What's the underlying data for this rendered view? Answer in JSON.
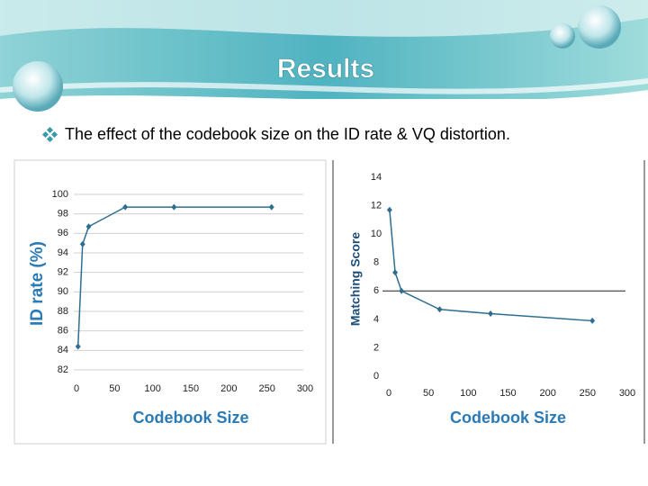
{
  "title": "Results",
  "bullet": "The effect of the codebook size on the ID rate & VQ distortion.",
  "chart_data": [
    {
      "type": "line",
      "xlabel": "Codebook Size",
      "ylabel": "ID rate (%)",
      "series": [
        {
          "color": "#2e6f8f",
          "x": [
            2,
            8,
            16,
            64,
            128,
            256
          ],
          "values": [
            84.4,
            94.9,
            96.7,
            98.7,
            98.7,
            98.7
          ]
        }
      ],
      "xlim": [
        0,
        300
      ],
      "xticks": [
        0,
        50,
        100,
        150,
        200,
        250,
        300
      ],
      "ylim": [
        82,
        100
      ],
      "yticks": [
        82,
        84,
        86,
        88,
        90,
        92,
        94,
        96,
        98,
        100
      ],
      "grid": true
    },
    {
      "type": "line",
      "xlabel": "Codebook Size",
      "ylabel": "Matching Score",
      "series": [
        {
          "color": "#2e6f8f",
          "x": [
            1,
            8,
            16,
            64,
            128,
            256
          ],
          "values": [
            11.7,
            7.3,
            6.0,
            4.7,
            4.4,
            3.9
          ]
        }
      ],
      "xlim": [
        0,
        300
      ],
      "xticks": [
        0,
        50,
        100,
        150,
        200,
        250,
        300
      ],
      "ylim": [
        0,
        14
      ],
      "yticks": [
        0,
        2,
        4,
        6,
        8,
        10,
        12,
        14
      ],
      "grid": false,
      "hline": 6
    }
  ]
}
